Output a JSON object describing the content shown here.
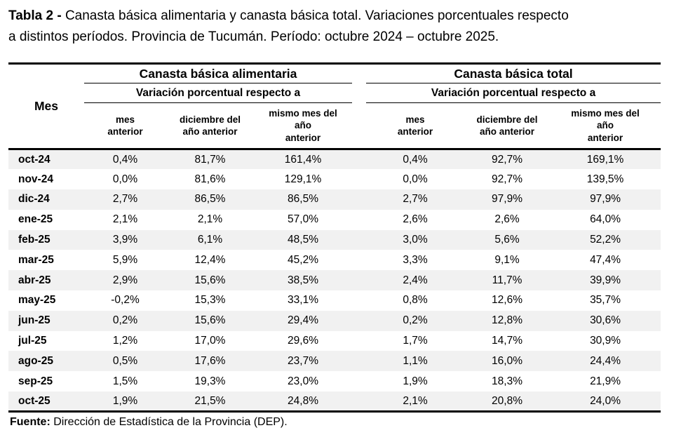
{
  "title": {
    "prefix": "Tabla 2 -",
    "line1": " Canasta básica alimentaria y canasta básica total. Variaciones porcentuales respecto",
    "line2": "a distintos períodos. Provincia de Tucumán. Período: octubre 2024 – octubre 2025."
  },
  "table": {
    "mes_header": "Mes",
    "groups": [
      {
        "label": "Canasta básica alimentaria",
        "sublabel": "Variación porcentual respecto a",
        "columns": [
          "mes\nanterior",
          "diciembre del\naño anterior",
          "mismo mes del\naño\nanterior"
        ]
      },
      {
        "label": "Canasta básica total",
        "sublabel": "Variación porcentual respecto a",
        "columns": [
          "mes\nanterior",
          "diciembre del\naño anterior",
          "mismo mes del\naño\nanterior"
        ]
      }
    ],
    "rows": [
      {
        "mes": "oct-24",
        "cba": [
          "0,4%",
          "81,7%",
          "161,4%"
        ],
        "cbt": [
          "0,4%",
          "92,7%",
          "169,1%"
        ]
      },
      {
        "mes": "nov-24",
        "cba": [
          "0,0%",
          "81,6%",
          "129,1%"
        ],
        "cbt": [
          "0,0%",
          "92,7%",
          "139,5%"
        ]
      },
      {
        "mes": "dic-24",
        "cba": [
          "2,7%",
          "86,5%",
          "86,5%"
        ],
        "cbt": [
          "2,7%",
          "97,9%",
          "97,9%"
        ]
      },
      {
        "mes": "ene-25",
        "cba": [
          "2,1%",
          "2,1%",
          "57,0%"
        ],
        "cbt": [
          "2,6%",
          "2,6%",
          "64,0%"
        ]
      },
      {
        "mes": "feb-25",
        "cba": [
          "3,9%",
          "6,1%",
          "48,5%"
        ],
        "cbt": [
          "3,0%",
          "5,6%",
          "52,2%"
        ]
      },
      {
        "mes": "mar-25",
        "cba": [
          "5,9%",
          "12,4%",
          "45,2%"
        ],
        "cbt": [
          "3,3%",
          "9,1%",
          "47,4%"
        ]
      },
      {
        "mes": "abr-25",
        "cba": [
          "2,9%",
          "15,6%",
          "38,5%"
        ],
        "cbt": [
          "2,4%",
          "11,7%",
          "39,9%"
        ]
      },
      {
        "mes": "may-25",
        "cba": [
          "-0,2%",
          "15,3%",
          "33,1%"
        ],
        "cbt": [
          "0,8%",
          "12,6%",
          "35,7%"
        ]
      },
      {
        "mes": "jun-25",
        "cba": [
          "0,2%",
          "15,6%",
          "29,4%"
        ],
        "cbt": [
          "0,2%",
          "12,8%",
          "30,6%"
        ]
      },
      {
        "mes": "jul-25",
        "cba": [
          "1,2%",
          "17,0%",
          "29,6%"
        ],
        "cbt": [
          "1,7%",
          "14,7%",
          "30,9%"
        ]
      },
      {
        "mes": "ago-25",
        "cba": [
          "0,5%",
          "17,6%",
          "23,7%"
        ],
        "cbt": [
          "1,1%",
          "16,0%",
          "24,4%"
        ]
      },
      {
        "mes": "sep-25",
        "cba": [
          "1,5%",
          "19,3%",
          "23,0%"
        ],
        "cbt": [
          "1,9%",
          "18,3%",
          "21,9%"
        ]
      },
      {
        "mes": "oct-25",
        "cba": [
          "1,9%",
          "21,5%",
          "24,8%"
        ],
        "cbt": [
          "2,1%",
          "20,8%",
          "24,0%"
        ]
      }
    ]
  },
  "footer": {
    "label": "Fuente:",
    "text": " Dirección de Estadística de la Provincia (DEP)."
  },
  "colors": {
    "stripe": "#f1f1f1",
    "border": "#000000",
    "text": "#000000"
  }
}
